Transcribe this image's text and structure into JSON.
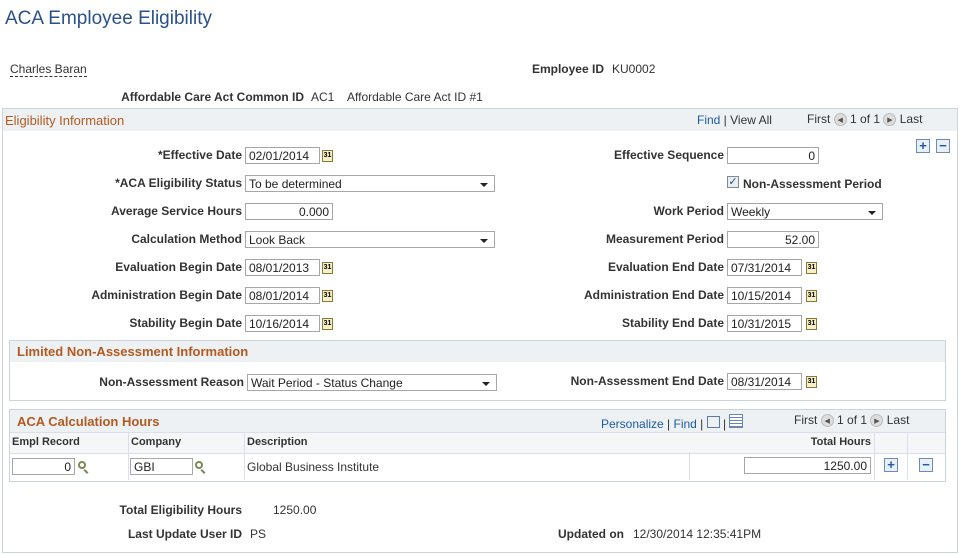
{
  "page": {
    "title": "ACA Employee Eligibility"
  },
  "header": {
    "employee_name": "Charles Baran",
    "employee_id_label": "Employee ID",
    "employee_id": "KU0002",
    "aca_common_id_label": "Affordable Care Act Common ID",
    "aca_common_id": "AC1",
    "aca_common_id_desc": "Affordable Care Act ID #1"
  },
  "eligibility": {
    "title": "Eligibility Information",
    "find": "Find",
    "view_all": "View All",
    "first": "First",
    "page": "1 of 1",
    "last": "Last",
    "effective_date_label": "*Effective Date",
    "effective_date": "02/01/2014",
    "effective_sequence_label": "Effective Sequence",
    "effective_sequence": "0",
    "status_label": "*ACA Eligibility Status",
    "status": "To be determined",
    "non_assessment_label": "Non-Assessment Period",
    "non_assessment_checked": true,
    "avg_hours_label": "Average Service Hours",
    "avg_hours": "0.000",
    "work_period_label": "Work Period",
    "work_period": "Weekly",
    "calc_method_label": "Calculation Method",
    "calc_method": "Look Back",
    "measurement_label": "Measurement Period",
    "measurement": "52.00",
    "eval_begin_label": "Evaluation Begin Date",
    "eval_begin": "08/01/2013",
    "eval_end_label": "Evaluation End Date",
    "eval_end": "07/31/2014",
    "admin_begin_label": "Administration Begin Date",
    "admin_begin": "08/01/2014",
    "admin_end_label": "Administration End Date",
    "admin_end": "10/15/2014",
    "stab_begin_label": "Stability Begin Date",
    "stab_begin": "10/16/2014",
    "stab_end_label": "Stability End Date",
    "stab_end": "10/31/2015"
  },
  "limited": {
    "title": "Limited Non-Assessment Information",
    "reason_label": "Non-Assessment Reason",
    "reason": "Wait Period - Status Change",
    "end_label": "Non-Assessment End Date",
    "end": "08/31/2014"
  },
  "calc_hours": {
    "title": "ACA Calculation Hours",
    "personalize": "Personalize",
    "find": "Find",
    "first": "First",
    "page": "1 of 1",
    "last": "Last",
    "columns": [
      "Empl Record",
      "Company",
      "Description",
      "Total Hours"
    ],
    "rows": [
      {
        "empl_record": "0",
        "company": "GBI",
        "description": "Global Business Institute",
        "total_hours": "1250.00"
      }
    ]
  },
  "footer": {
    "total_label": "Total Eligibility Hours",
    "total": "1250.00",
    "user_label": "Last Update User ID",
    "user": "PS",
    "updated_label": "Updated on",
    "updated": "12/30/2014 12:35:41PM"
  },
  "icons": {
    "calendar": "calendar-icon",
    "lookup": "magnifier-icon",
    "add": "plus-icon",
    "delete": "minus-icon"
  }
}
